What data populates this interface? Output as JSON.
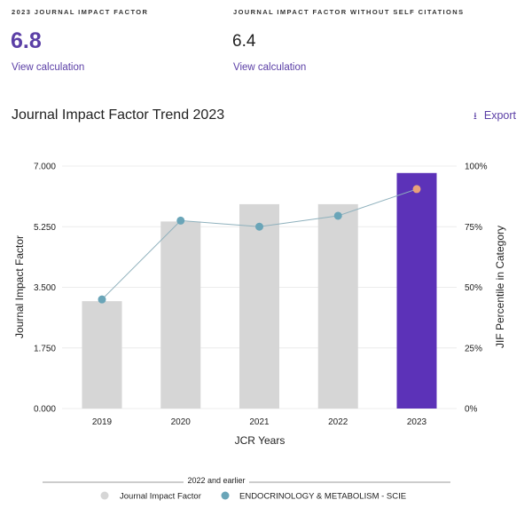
{
  "metrics": [
    {
      "label": "2023 JOURNAL IMPACT FACTOR",
      "value": "6.8",
      "link": "View calculation"
    },
    {
      "label": "JOURNAL IMPACT FACTOR WITHOUT SELF CITATIONS",
      "value": "6.4",
      "link": "View calculation"
    }
  ],
  "section": {
    "title": "Journal Impact Factor Trend 2023",
    "export_label": "Export",
    "export_icon": "download-icon"
  },
  "colors": {
    "bar": "#d6d6d6",
    "bar_highlight": "#5c32b8",
    "line": "#8fb1bd",
    "point": "#6aa5b8",
    "point_highlight": "#e8a07a",
    "accent": "#5b3fa6"
  },
  "chart_data": {
    "type": "bar+line",
    "categories": [
      "2019",
      "2020",
      "2021",
      "2022",
      "2023"
    ],
    "series": [
      {
        "name": "Journal Impact Factor",
        "type": "bar",
        "axis": "left",
        "values": [
          3.1,
          5.4,
          5.9,
          5.9,
          6.8
        ]
      },
      {
        "name": "ENDOCRINOLOGY & METABOLISM - SCIE",
        "type": "line",
        "axis": "right",
        "values": [
          45,
          77.5,
          75,
          79.5,
          90.5
        ]
      }
    ],
    "xlabel": "JCR Years",
    "ylabel": "Journal Impact Factor",
    "y2label": "JIF Percentile in Category",
    "ylim": [
      0,
      7
    ],
    "y2lim": [
      0,
      100
    ],
    "yticks": [
      "0.000",
      "1.750",
      "3.500",
      "5.250",
      "7.000"
    ],
    "y2ticks": [
      "0%",
      "25%",
      "50%",
      "75%",
      "100%"
    ],
    "grid": true,
    "highlight_category": "2023",
    "legend": {
      "position": "bottom",
      "group_label": "2022 and earlier",
      "items": [
        "Journal Impact Factor",
        "ENDOCRINOLOGY & METABOLISM - SCIE"
      ]
    }
  }
}
